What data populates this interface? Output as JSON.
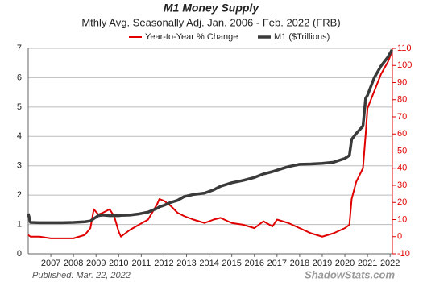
{
  "chart_data": {
    "type": "line",
    "title": "M1 Money Supply",
    "subtitle": "Mthly Avg. Seasonally Adj. Jan. 2006 - Feb. 2022  (FRB)",
    "footnote": "Published: Mar. 22, 2022",
    "source": "ShadowStats.com",
    "x": [
      2006.0,
      2006.1,
      2006.5,
      2007.0,
      2007.5,
      2008.0,
      2008.5,
      2008.75,
      2008.9,
      2009.1,
      2009.3,
      2009.6,
      2009.8,
      2010.0,
      2010.1,
      2010.5,
      2010.9,
      2011.3,
      2011.7,
      2011.8,
      2012.0,
      2012.3,
      2012.6,
      2012.9,
      2013.3,
      2013.8,
      2014.2,
      2014.5,
      2015.0,
      2015.5,
      2016.0,
      2016.4,
      2016.8,
      2017.0,
      2017.5,
      2018.0,
      2018.5,
      2019.0,
      2019.5,
      2020.0,
      2020.2,
      2020.3,
      2020.5,
      2020.8,
      2020.92,
      2021.0,
      2021.3,
      2021.6,
      2021.9,
      2022.08
    ],
    "series": [
      {
        "name": "Year-to-Year % Change",
        "color": "#e00000",
        "axis": "y2",
        "values": [
          1,
          0,
          0,
          -1,
          -1,
          -1,
          1,
          5,
          16,
          13,
          14,
          16,
          12,
          3,
          0,
          4,
          7,
          10,
          19,
          22,
          21,
          18,
          14,
          12,
          10,
          8,
          10,
          11,
          8,
          7,
          5,
          9,
          6,
          10,
          8,
          5,
          2,
          0,
          2,
          5,
          7,
          22,
          32,
          40,
          60,
          75,
          85,
          95,
          102,
          108
        ]
      },
      {
        "name": "M1 ($Trillions)",
        "color": "#3a3a3a",
        "axis": "y",
        "values": [
          1.37,
          1.07,
          1.06,
          1.06,
          1.06,
          1.07,
          1.09,
          1.12,
          1.2,
          1.3,
          1.32,
          1.3,
          1.3,
          1.3,
          1.31,
          1.32,
          1.36,
          1.42,
          1.55,
          1.6,
          1.65,
          1.75,
          1.82,
          1.95,
          2.02,
          2.07,
          2.18,
          2.3,
          2.42,
          2.5,
          2.6,
          2.72,
          2.8,
          2.85,
          2.97,
          3.05,
          3.06,
          3.08,
          3.12,
          3.25,
          3.35,
          3.9,
          4.1,
          4.35,
          5.3,
          5.4,
          6.0,
          6.4,
          6.7,
          6.95
        ]
      }
    ],
    "xlim": [
      2006,
      2022.1
    ],
    "xticks": [
      2007,
      2008,
      2009,
      2010,
      2011,
      2012,
      2013,
      2014,
      2015,
      2016,
      2017,
      2018,
      2019,
      2020,
      2021,
      2022
    ],
    "ylim": [
      0,
      7
    ],
    "yticks": [
      0,
      1,
      2,
      3,
      4,
      5,
      6,
      7
    ],
    "y2lim": [
      -10,
      110
    ],
    "y2ticks": [
      -10,
      0,
      10,
      20,
      30,
      40,
      50,
      60,
      70,
      80,
      90,
      100,
      110
    ],
    "grid": true
  }
}
